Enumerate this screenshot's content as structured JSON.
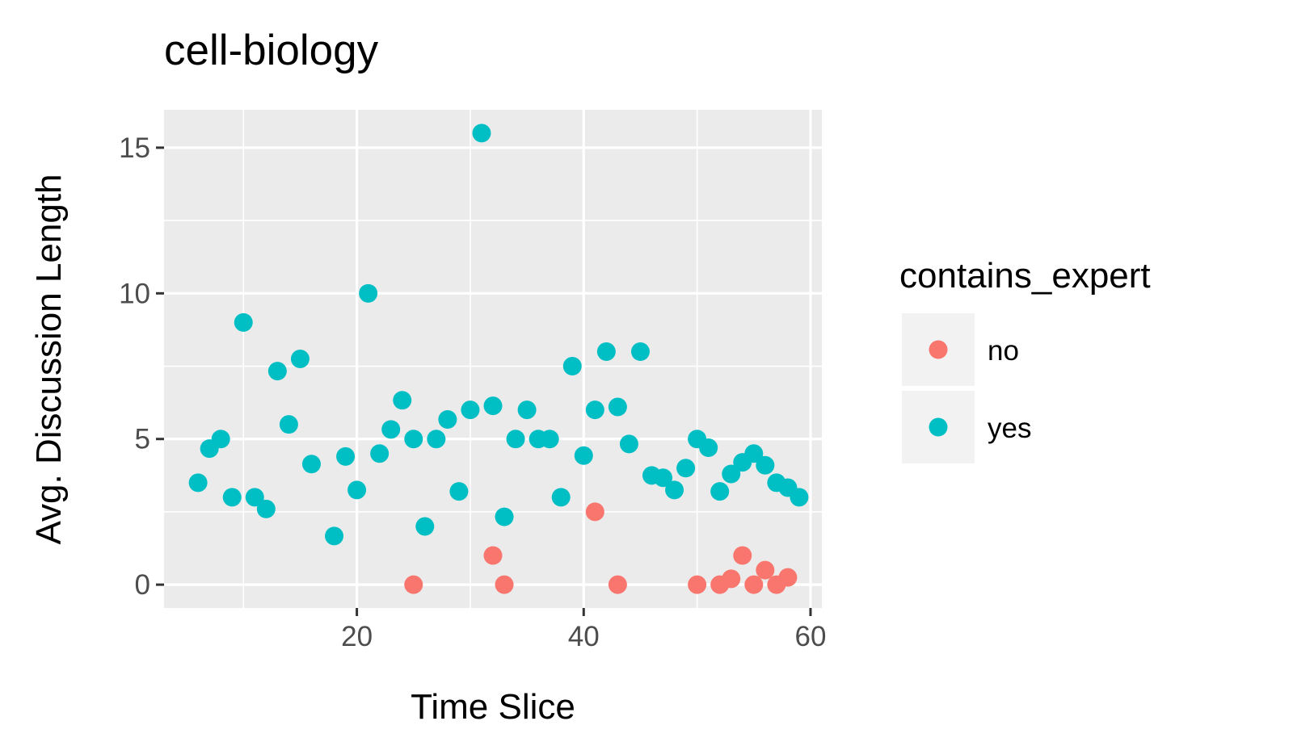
{
  "chart_data": {
    "type": "scatter",
    "title": "cell-biology",
    "xlabel": "Time Slice",
    "ylabel": "Avg. Discussion Length",
    "xlim": [
      3,
      61
    ],
    "ylim": [
      -0.8,
      16.3
    ],
    "x_ticks": [
      20,
      40,
      60
    ],
    "x_tick_labels": [
      "20",
      "40",
      "60"
    ],
    "y_ticks": [
      0,
      5,
      10,
      15
    ],
    "y_tick_labels": [
      "0",
      "5",
      "10",
      "15"
    ],
    "grid": true,
    "legend": {
      "title": "contains_expert",
      "position": "right",
      "entries": [
        {
          "label": "no",
          "color": "#F8766D"
        },
        {
          "label": "yes",
          "color": "#00BFC4"
        }
      ]
    },
    "colors": {
      "panel_background": "#EBEBEB",
      "grid": "#FFFFFF",
      "legend_key_background": "#F2F2F2"
    },
    "series": [
      {
        "name": "no",
        "color": "#F8766D",
        "points": [
          [
            25,
            0
          ],
          [
            32,
            1
          ],
          [
            33,
            0
          ],
          [
            41,
            2.5
          ],
          [
            43,
            0
          ],
          [
            50,
            0
          ],
          [
            52,
            0
          ],
          [
            53,
            0.2
          ],
          [
            54,
            1
          ],
          [
            55,
            0
          ],
          [
            56,
            0.5
          ],
          [
            57,
            0
          ],
          [
            58,
            0.25
          ]
        ]
      },
      {
        "name": "yes",
        "color": "#00BFC4",
        "points": [
          [
            6,
            3.5
          ],
          [
            7,
            4.67
          ],
          [
            8,
            5
          ],
          [
            9,
            3
          ],
          [
            10,
            9
          ],
          [
            11,
            3
          ],
          [
            12,
            2.6
          ],
          [
            13,
            7.33
          ],
          [
            14,
            5.5
          ],
          [
            15,
            7.75
          ],
          [
            16,
            4.14
          ],
          [
            18,
            1.67
          ],
          [
            19,
            4.4
          ],
          [
            20,
            3.25
          ],
          [
            21,
            10
          ],
          [
            22,
            4.5
          ],
          [
            23,
            5.33
          ],
          [
            24,
            6.33
          ],
          [
            25,
            5
          ],
          [
            26,
            2
          ],
          [
            27,
            5
          ],
          [
            28,
            5.67
          ],
          [
            29,
            3.2
          ],
          [
            30,
            6
          ],
          [
            31,
            15.5
          ],
          [
            32,
            6.14
          ],
          [
            33,
            2.33
          ],
          [
            34,
            5
          ],
          [
            35,
            6
          ],
          [
            36,
            5
          ],
          [
            37,
            5
          ],
          [
            38,
            3
          ],
          [
            39,
            7.5
          ],
          [
            40,
            4.43
          ],
          [
            41,
            6
          ],
          [
            42,
            8
          ],
          [
            43,
            6.1
          ],
          [
            44,
            4.83
          ],
          [
            45,
            8
          ],
          [
            46,
            3.75
          ],
          [
            47,
            3.67
          ],
          [
            48,
            3.25
          ],
          [
            49,
            4
          ],
          [
            50,
            5
          ],
          [
            51,
            4.7
          ],
          [
            52,
            3.2
          ],
          [
            53,
            3.8
          ],
          [
            54,
            4.2
          ],
          [
            55,
            4.5
          ],
          [
            56,
            4.1
          ],
          [
            57,
            3.5
          ],
          [
            58,
            3.33
          ],
          [
            59,
            3
          ]
        ]
      }
    ]
  }
}
